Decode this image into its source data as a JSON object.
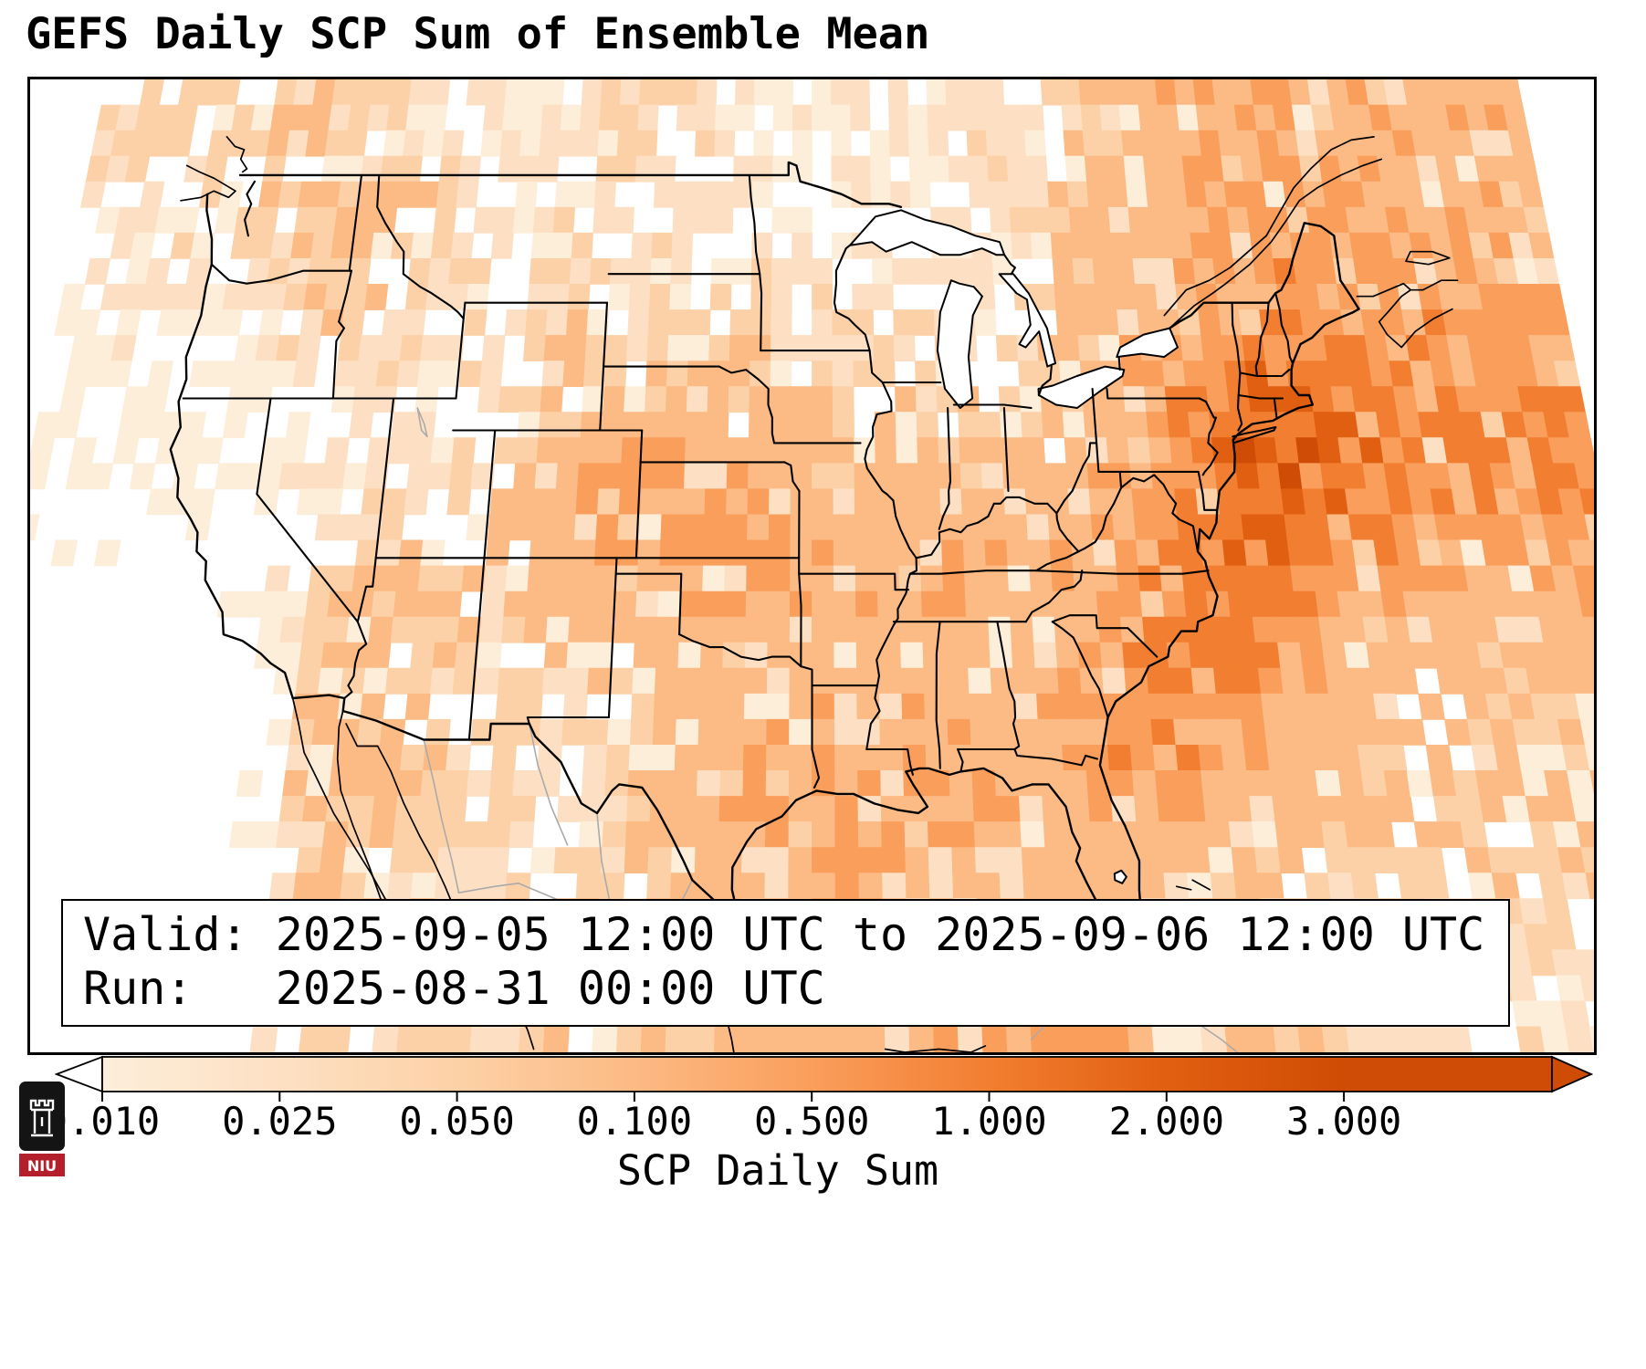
{
  "title": "GEFS Daily SCP Sum of Ensemble Mean",
  "info_box": {
    "valid_line": "Valid: 2025-09-05 12:00 UTC to 2025-09-06 12:00 UTC",
    "run_line": "Run:   2025-08-31 00:00 UTC"
  },
  "colorbar": {
    "label": "SCP Daily Sum",
    "ticks": [
      "0.010",
      "0.025",
      "0.050",
      "0.100",
      "0.500",
      "1.000",
      "2.000",
      "3.000"
    ]
  },
  "logo": {
    "text": "NIU"
  },
  "chart_data": {
    "type": "heatmap",
    "title": "GEFS Daily SCP Sum of Ensemble Mean",
    "colorbar_label": "SCP Daily Sum",
    "valid": "2025-09-05 12:00 UTC to 2025-09-06 12:00 UTC",
    "run": "2025-08-31 00:00 UTC",
    "extent": {
      "lon_min": -126,
      "lon_max": -62,
      "lat_min": 21.5,
      "lat_max": 52
    },
    "color_scale": {
      "thresholds": [
        0.01,
        0.025,
        0.05,
        0.1,
        0.5,
        1.0,
        2.0,
        3.0
      ],
      "under": "#ffffff",
      "colors": [
        "#fdeeda",
        "#fde0c3",
        "#fdd1a7",
        "#fcba84",
        "#fa9e5c",
        "#f27e31",
        "#e15f10"
      ],
      "over": "#cf4c06"
    },
    "grid": {
      "comment_units": "SCP daily sum ensemble mean, coarse 3deg lon x 2.35deg lat estimate",
      "lon_start": -123.5,
      "lon_step": 3.0,
      "lat_start": 49.8,
      "lat_step": 2.35,
      "ncols": 20,
      "nrows": 12,
      "values": [
        [
          0.05,
          0.08,
          0.05,
          0.03,
          0.02,
          0.02,
          0.03,
          0.05,
          0.03,
          0.02,
          0.02,
          0.02,
          0.02,
          0.03,
          0.05,
          0.1,
          0.3,
          0.4,
          0.35,
          0.3
        ],
        [
          0.03,
          0.06,
          0.1,
          0.1,
          0.05,
          0.03,
          0.03,
          0.03,
          0.02,
          0.02,
          0.03,
          0.02,
          0.02,
          0.02,
          0.05,
          0.15,
          0.3,
          0.5,
          0.5,
          0.4
        ],
        [
          0.02,
          0.03,
          0.08,
          0.05,
          0.03,
          0.05,
          0.05,
          0.03,
          0.05,
          0.05,
          0.05,
          0.03,
          0.03,
          0.03,
          0.08,
          0.2,
          0.3,
          0.55,
          0.7,
          0.5
        ],
        [
          0.01,
          0.02,
          0.03,
          0.03,
          0.02,
          0.05,
          0.08,
          0.05,
          0.08,
          0.08,
          0.05,
          0.05,
          0.05,
          0.05,
          0.1,
          0.3,
          0.6,
          1.2,
          1.0,
          0.6
        ],
        [
          0.01,
          0.01,
          0.02,
          0.02,
          0.02,
          0.05,
          0.2,
          0.3,
          0.3,
          0.2,
          0.1,
          0.08,
          0.08,
          0.08,
          0.15,
          0.4,
          1.0,
          2.4,
          1.5,
          0.8
        ],
        [
          0.01,
          0.01,
          0.02,
          0.05,
          0.05,
          0.08,
          0.3,
          0.5,
          0.5,
          0.4,
          0.3,
          0.2,
          0.3,
          0.3,
          0.3,
          0.5,
          1.0,
          1.8,
          1.0,
          0.5
        ],
        [
          0.0,
          0.01,
          0.02,
          0.1,
          0.08,
          0.05,
          0.2,
          0.3,
          0.4,
          0.4,
          0.3,
          0.3,
          0.3,
          0.3,
          0.3,
          0.6,
          1.0,
          0.8,
          0.4,
          0.3
        ],
        [
          0.0,
          0.0,
          0.01,
          0.15,
          0.08,
          0.03,
          0.05,
          0.1,
          0.2,
          0.2,
          0.2,
          0.2,
          0.2,
          0.2,
          0.4,
          0.7,
          0.7,
          0.4,
          0.2,
          0.15
        ],
        [
          0.0,
          0.0,
          0.01,
          0.2,
          0.1,
          0.03,
          0.03,
          0.05,
          0.1,
          0.3,
          0.4,
          0.4,
          0.3,
          0.3,
          0.5,
          0.6,
          0.4,
          0.2,
          0.1,
          0.1
        ],
        [
          0.0,
          0.0,
          0.01,
          0.15,
          0.1,
          0.05,
          0.03,
          0.03,
          0.2,
          0.5,
          0.5,
          0.5,
          0.4,
          0.3,
          0.3,
          0.3,
          0.2,
          0.1,
          0.08,
          0.08
        ],
        [
          0.0,
          0.0,
          0.0,
          0.1,
          0.08,
          0.05,
          0.05,
          0.05,
          0.1,
          0.3,
          0.4,
          0.3,
          0.3,
          0.2,
          0.2,
          0.2,
          0.1,
          0.08,
          0.05,
          0.05
        ],
        [
          0.0,
          0.0,
          0.0,
          0.05,
          0.05,
          0.05,
          0.08,
          0.08,
          0.1,
          0.2,
          0.3,
          0.3,
          0.3,
          0.5,
          0.3,
          0.2,
          0.1,
          0.05,
          0.03,
          0.03
        ]
      ]
    },
    "hotspots": [
      {
        "region": "Atlantic offshore of the Mid-Atlantic / Northeast coast",
        "approx_max": 2.5
      },
      {
        "region": "Western Gulf of Mexico off TX/LA coast",
        "approx_max": 0.8
      },
      {
        "region": "Central Plains band (KS/OK/MO)",
        "approx_max": 0.5
      },
      {
        "region": "Quebec / northern New England",
        "approx_max": 0.7
      },
      {
        "region": "Sonora, Mexico",
        "approx_max": 0.2
      }
    ]
  }
}
